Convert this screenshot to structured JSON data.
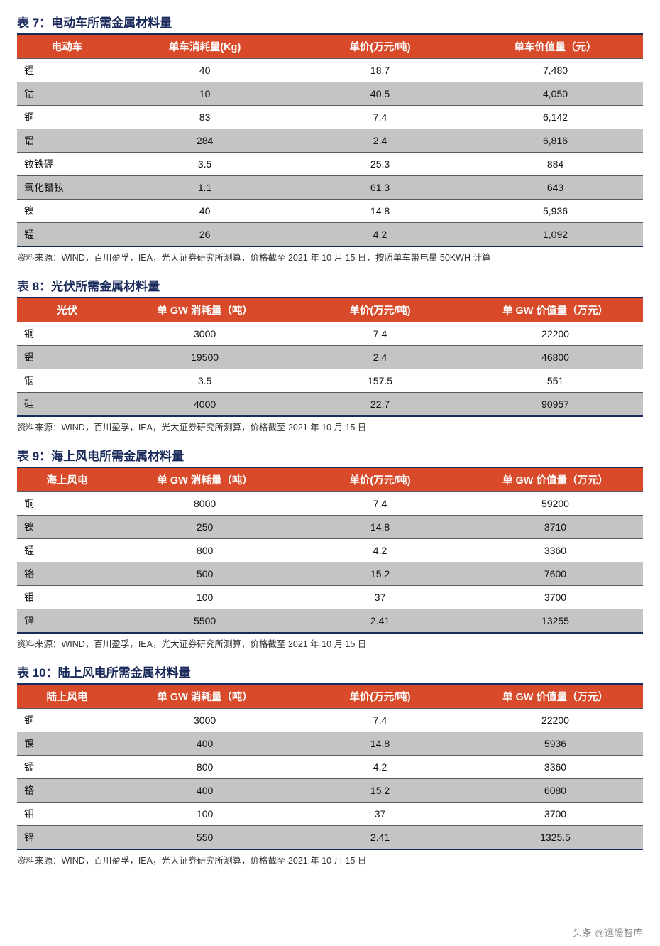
{
  "styling": {
    "title_color": "#1a2a5a",
    "title_fontsize_pt": 13,
    "title_fontweight": "bold",
    "title_border_bottom": "2px solid #1a2a5a",
    "header_bg": "#d84a29",
    "header_text_color": "#ffffff",
    "header_fontsize_pt": 11,
    "row_even_bg": "#c4c4c4",
    "row_odd_bg": "#ffffff",
    "cell_fontsize_pt": 10.5,
    "cell_text_color": "#111111",
    "cell_border_top": "1px solid #5a5a5a",
    "last_row_border_bottom": "2px solid #1a2a5a",
    "source_fontsize_pt": 9.5,
    "source_color": "#333333",
    "page_bg": "#ffffff",
    "column_widths_pct": [
      16,
      28,
      28,
      28
    ],
    "col_align": [
      "left",
      "center",
      "center",
      "center"
    ]
  },
  "watermark": "头条 @远瞻智库",
  "tables": [
    {
      "title": "表 7：电动车所需金属材料量",
      "columns": [
        "电动车",
        "单车消耗量(Kg)",
        "单价(万元/吨)",
        "单车价值量（元）"
      ],
      "rows": [
        [
          "锂",
          "40",
          "18.7",
          "7,480"
        ],
        [
          "钴",
          "10",
          "40.5",
          "4,050"
        ],
        [
          "铜",
          "83",
          "7.4",
          "6,142"
        ],
        [
          "铝",
          "284",
          "2.4",
          "6,816"
        ],
        [
          "钕铁硼",
          "3.5",
          "25.3",
          "884"
        ],
        [
          "氧化镨钕",
          "1.1",
          "61.3",
          "643"
        ],
        [
          "镍",
          "40",
          "14.8",
          "5,936"
        ],
        [
          "锰",
          "26",
          "4.2",
          "1,092"
        ]
      ],
      "source": "资料来源：WIND，百川盈孚，IEA，光大证券研究所测算，价格截至 2021 年 10 月 15 日，按照单车带电量 50KWH 计算"
    },
    {
      "title": "表 8：光伏所需金属材料量",
      "columns": [
        "光伏",
        "单 GW 消耗量（吨）",
        "单价(万元/吨)",
        "单 GW 价值量（万元）"
      ],
      "rows": [
        [
          "铜",
          "3000",
          "7.4",
          "22200"
        ],
        [
          "铝",
          "19500",
          "2.4",
          "46800"
        ],
        [
          "铟",
          "3.5",
          "157.5",
          "551"
        ],
        [
          "硅",
          "4000",
          "22.7",
          "90957"
        ]
      ],
      "source": "资料来源：WIND，百川盈孚，IEA，光大证券研究所测算，价格截至 2021 年 10 月 15 日"
    },
    {
      "title": "表 9：海上风电所需金属材料量",
      "columns": [
        "海上风电",
        "单 GW 消耗量（吨）",
        "单价(万元/吨)",
        "单 GW 价值量（万元）"
      ],
      "rows": [
        [
          "铜",
          "8000",
          "7.4",
          "59200"
        ],
        [
          "镍",
          "250",
          "14.8",
          "3710"
        ],
        [
          "锰",
          "800",
          "4.2",
          "3360"
        ],
        [
          "铬",
          "500",
          "15.2",
          "7600"
        ],
        [
          "钼",
          "100",
          "37",
          "3700"
        ],
        [
          "锌",
          "5500",
          "2.41",
          "13255"
        ]
      ],
      "source": "资料来源：WIND，百川盈孚，IEA，光大证券研究所测算，价格截至 2021 年 10 月 15 日"
    },
    {
      "title": "表 10：陆上风电所需金属材料量",
      "columns": [
        "陆上风电",
        "单 GW 消耗量（吨）",
        "单价(万元/吨)",
        "单 GW 价值量（万元）"
      ],
      "rows": [
        [
          "铜",
          "3000",
          "7.4",
          "22200"
        ],
        [
          "镍",
          "400",
          "14.8",
          "5936"
        ],
        [
          "锰",
          "800",
          "4.2",
          "3360"
        ],
        [
          "铬",
          "400",
          "15.2",
          "6080"
        ],
        [
          "钼",
          "100",
          "37",
          "3700"
        ],
        [
          "锌",
          "550",
          "2.41",
          "1325.5"
        ]
      ],
      "source": "资料来源：WIND，百川盈孚，IEA，光大证券研究所测算，价格截至 2021 年 10 月 15 日"
    }
  ]
}
